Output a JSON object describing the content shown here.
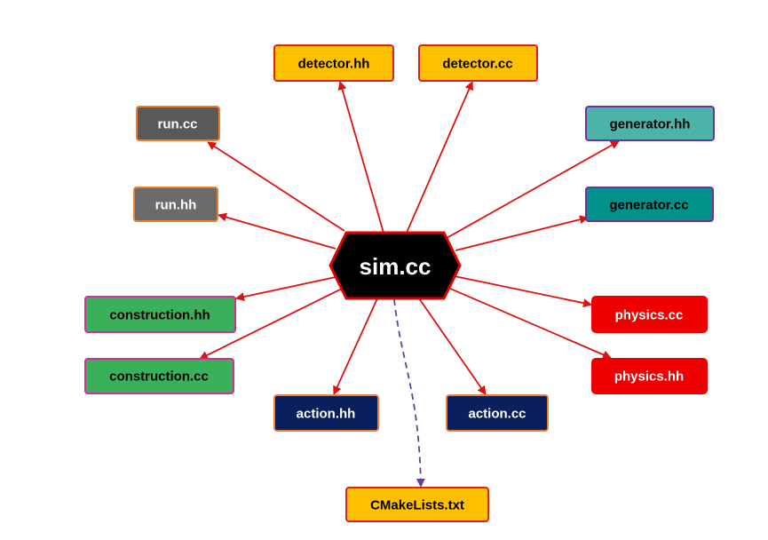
{
  "center": {
    "label": "sim.cc",
    "fill": "#000000",
    "border": "#e00000",
    "text_color": "#ffffff"
  },
  "edge_colors": {
    "solid": "#dd1111",
    "dashed": "#6a3d9a"
  },
  "nodes": [
    {
      "id": "detector-hh",
      "label": "detector.hh",
      "fill": "#ffc000",
      "border": "#e02020",
      "text_color": "#000000",
      "edge": "solid"
    },
    {
      "id": "detector-cc",
      "label": "detector.cc",
      "fill": "#ffc000",
      "border": "#e02020",
      "text_color": "#000000",
      "edge": "solid"
    },
    {
      "id": "run-cc",
      "label": "run.cc",
      "fill": "#595959",
      "border": "#ed7d31",
      "text_color": "#ffffff",
      "edge": "solid"
    },
    {
      "id": "run-hh",
      "label": "run.hh",
      "fill": "#6b6b6b",
      "border": "#ed7d31",
      "text_color": "#ffffff",
      "edge": "solid"
    },
    {
      "id": "generator-hh",
      "label": "generator.hh",
      "fill": "#4bb3a8",
      "border": "#7030a0",
      "text_color": "#000000",
      "edge": "solid"
    },
    {
      "id": "generator-cc",
      "label": "generator.cc",
      "fill": "#00928a",
      "border": "#7030a0",
      "text_color": "#000000",
      "edge": "solid"
    },
    {
      "id": "construction-hh",
      "label": "construction.hh",
      "fill": "#3bb05a",
      "border": "#cc3399",
      "text_color": "#000000",
      "edge": "solid"
    },
    {
      "id": "construction-cc",
      "label": "construction.cc",
      "fill": "#3bb05a",
      "border": "#cc3399",
      "text_color": "#000000",
      "edge": "solid"
    },
    {
      "id": "physics-cc",
      "label": "physics.cc",
      "fill": "#ee0000",
      "border": "#ee0000",
      "text_color": "#ffffff",
      "edge": "solid"
    },
    {
      "id": "physics-hh",
      "label": "physics.hh",
      "fill": "#ee0000",
      "border": "#ee0000",
      "text_color": "#ffffff",
      "edge": "solid"
    },
    {
      "id": "action-hh",
      "label": "action.hh",
      "fill": "#0a1f5c",
      "border": "#ed7d31",
      "text_color": "#ffffff",
      "edge": "solid"
    },
    {
      "id": "action-cc",
      "label": "action.cc",
      "fill": "#0a1f5c",
      "border": "#ed7d31",
      "text_color": "#ffffff",
      "edge": "solid"
    },
    {
      "id": "cmakelists-txt",
      "label": "CMakeLists.txt",
      "fill": "#ffc000",
      "border": "#e02020",
      "text_color": "#000000",
      "edge": "dashed"
    }
  ]
}
